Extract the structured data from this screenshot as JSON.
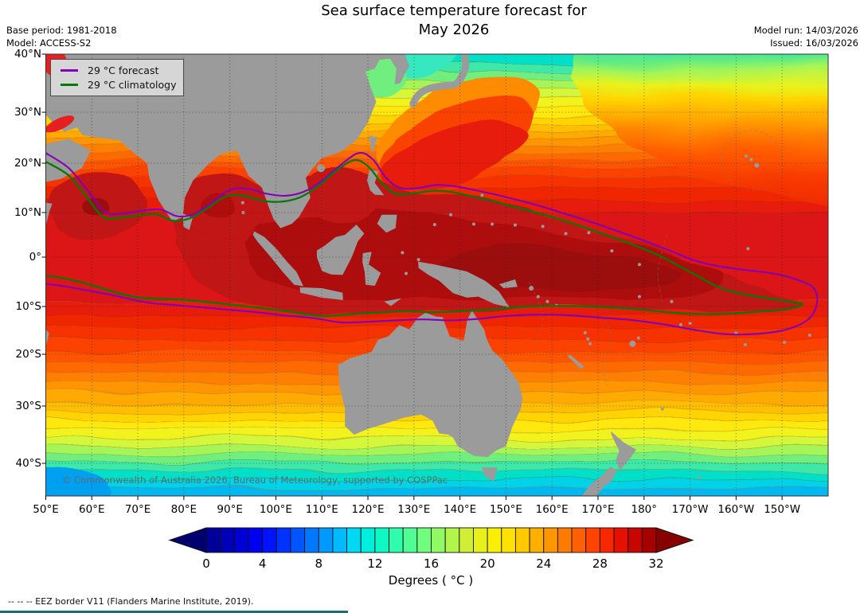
{
  "header": {
    "title_line1": "Sea surface temperature forecast for",
    "title_line2": "May 2026",
    "base_period": "Base period: 1981-2018",
    "model": "Model: ACCESS-S2",
    "model_run": "Model run: 14/03/2026",
    "issued": "Issued: 16/03/2026"
  },
  "legend": {
    "items": [
      {
        "label": "29 °C  forecast",
        "color": "#8400B4"
      },
      {
        "label": "29 °C  climatology",
        "color": "#067806"
      }
    ]
  },
  "map": {
    "copyright": "© Commonwealth of Australia 2026, Bureau of Meteorology, supported by COSPPac",
    "lat_ticks": [
      {
        "label": "40°N",
        "lat": 40
      },
      {
        "label": "30°N",
        "lat": 30
      },
      {
        "label": "20°N",
        "lat": 20
      },
      {
        "label": "10°N",
        "lat": 10
      },
      {
        "label": "0°",
        "lat": 0
      },
      {
        "label": "10°S",
        "lat": -10
      },
      {
        "label": "20°S",
        "lat": -20
      },
      {
        "label": "30°S",
        "lat": -30
      },
      {
        "label": "40°S",
        "lat": -40
      }
    ],
    "lon_ticks": [
      {
        "label": "50°E",
        "lon": 50
      },
      {
        "label": "60°E",
        "lon": 60
      },
      {
        "label": "70°E",
        "lon": 70
      },
      {
        "label": "80°E",
        "lon": 80
      },
      {
        "label": "90°E",
        "lon": 90
      },
      {
        "label": "100°E",
        "lon": 100
      },
      {
        "label": "110°E",
        "lon": 110
      },
      {
        "label": "120°E",
        "lon": 120
      },
      {
        "label": "130°E",
        "lon": 130
      },
      {
        "label": "140°E",
        "lon": 140
      },
      {
        "label": "150°E",
        "lon": 150
      },
      {
        "label": "160°E",
        "lon": 160
      },
      {
        "label": "170°E",
        "lon": 170
      },
      {
        "label": "180°",
        "lon": 180
      },
      {
        "label": "170°W",
        "lon": 190
      },
      {
        "label": "160°W",
        "lon": 200
      },
      {
        "label": "150°W",
        "lon": 210
      }
    ]
  },
  "colorbar": {
    "caption": "Degrees ( °C )",
    "range": [
      0,
      32
    ],
    "ticks": [
      "0",
      "4",
      "8",
      "12",
      "16",
      "20",
      "24",
      "28",
      "32"
    ],
    "tick_values": [
      0,
      4,
      8,
      12,
      16,
      20,
      24,
      28,
      32
    ],
    "palette": [
      "#000099",
      "#0000B8",
      "#0000D6",
      "#0000F0",
      "#0013FF",
      "#0033FF",
      "#0055FF",
      "#0077FF",
      "#0099FF",
      "#00BBFF",
      "#00D9F5",
      "#00EEDC",
      "#0FF8C4",
      "#2FFCAC",
      "#50FF94",
      "#70FF7C",
      "#90FA64",
      "#B0F44C",
      "#D0EE34",
      "#E8F01C",
      "#F8F000",
      "#FFE200",
      "#FFC900",
      "#FFAF00",
      "#FF9500",
      "#FF7B00",
      "#FF6000",
      "#FF4300",
      "#F72800",
      "#E61000",
      "#C80600",
      "#A60000"
    ],
    "arrow_left": "#00006E",
    "arrow_right": "#860000"
  },
  "footnote": "--  --  -- EEZ border V11 (Flanders Marine Institute, 2019).",
  "colors": {
    "land": "#9B9B9B",
    "grid": "#222222",
    "forecast_contour": "#8400B4",
    "climatology_contour": "#067806",
    "legend_bg": "#D6D6D6",
    "warm_pool_core": "#AD0E0E",
    "plot_border": "#333333"
  }
}
